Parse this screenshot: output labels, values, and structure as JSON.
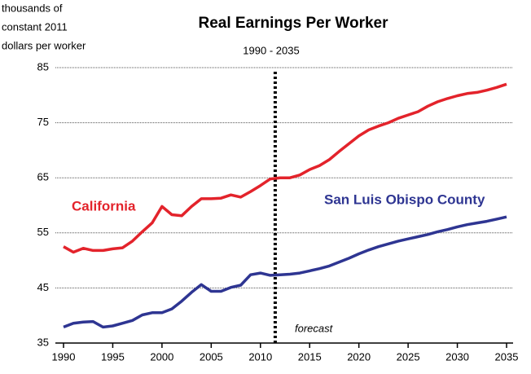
{
  "chart_data": {
    "type": "line",
    "title": "Real Earnings Per Worker",
    "subtitle": "1990 - 2035",
    "ylabel": [
      "thousands of",
      "constant 2011",
      "dollars per worker"
    ],
    "annotation": "forecast",
    "forecast_start": 2011.5,
    "x": [
      1990,
      1991,
      1992,
      1993,
      1994,
      1995,
      1996,
      1997,
      1998,
      1999,
      2000,
      2001,
      2002,
      2003,
      2004,
      2005,
      2006,
      2007,
      2008,
      2009,
      2010,
      2011,
      2012,
      2013,
      2014,
      2015,
      2016,
      2017,
      2018,
      2019,
      2020,
      2021,
      2022,
      2023,
      2024,
      2025,
      2026,
      2027,
      2028,
      2029,
      2030,
      2031,
      2032,
      2033,
      2034,
      2035
    ],
    "series": [
      {
        "name": "California",
        "color": "#e3232b",
        "values": [
          52.5,
          51.5,
          52.2,
          51.8,
          51.8,
          52.1,
          52.3,
          53.5,
          55.2,
          56.8,
          59.8,
          58.3,
          58.1,
          59.8,
          61.2,
          61.2,
          61.3,
          61.9,
          61.5,
          62.5,
          63.6,
          64.8,
          65.0,
          65.0,
          65.5,
          66.5,
          67.2,
          68.3,
          69.8,
          71.2,
          72.6,
          73.7,
          74.4,
          75.0,
          75.8,
          76.4,
          77.0,
          78.0,
          78.8,
          79.4,
          79.9,
          80.3,
          80.5,
          80.9,
          81.4,
          82.0
        ]
      },
      {
        "name": "San Luis Obispo County",
        "color": "#2e3592",
        "values": [
          37.9,
          38.6,
          38.8,
          38.9,
          37.9,
          38.1,
          38.6,
          39.1,
          40.1,
          40.5,
          40.5,
          41.2,
          42.6,
          44.2,
          45.6,
          44.4,
          44.4,
          45.1,
          45.5,
          47.4,
          47.7,
          47.3,
          47.4,
          47.5,
          47.7,
          48.1,
          48.5,
          49.0,
          49.7,
          50.4,
          51.2,
          51.9,
          52.5,
          53.0,
          53.5,
          53.9,
          54.3,
          54.7,
          55.2,
          55.6,
          56.1,
          56.5,
          56.8,
          57.1,
          57.5,
          57.9
        ]
      }
    ],
    "xlim": [
      1990,
      2035
    ],
    "xticks": [
      1990,
      1995,
      2000,
      2005,
      2010,
      2015,
      2020,
      2025,
      2030,
      2035
    ],
    "ylim": [
      35,
      85
    ],
    "yticks": [
      35,
      45,
      55,
      65,
      75,
      85
    ],
    "grid": true
  }
}
